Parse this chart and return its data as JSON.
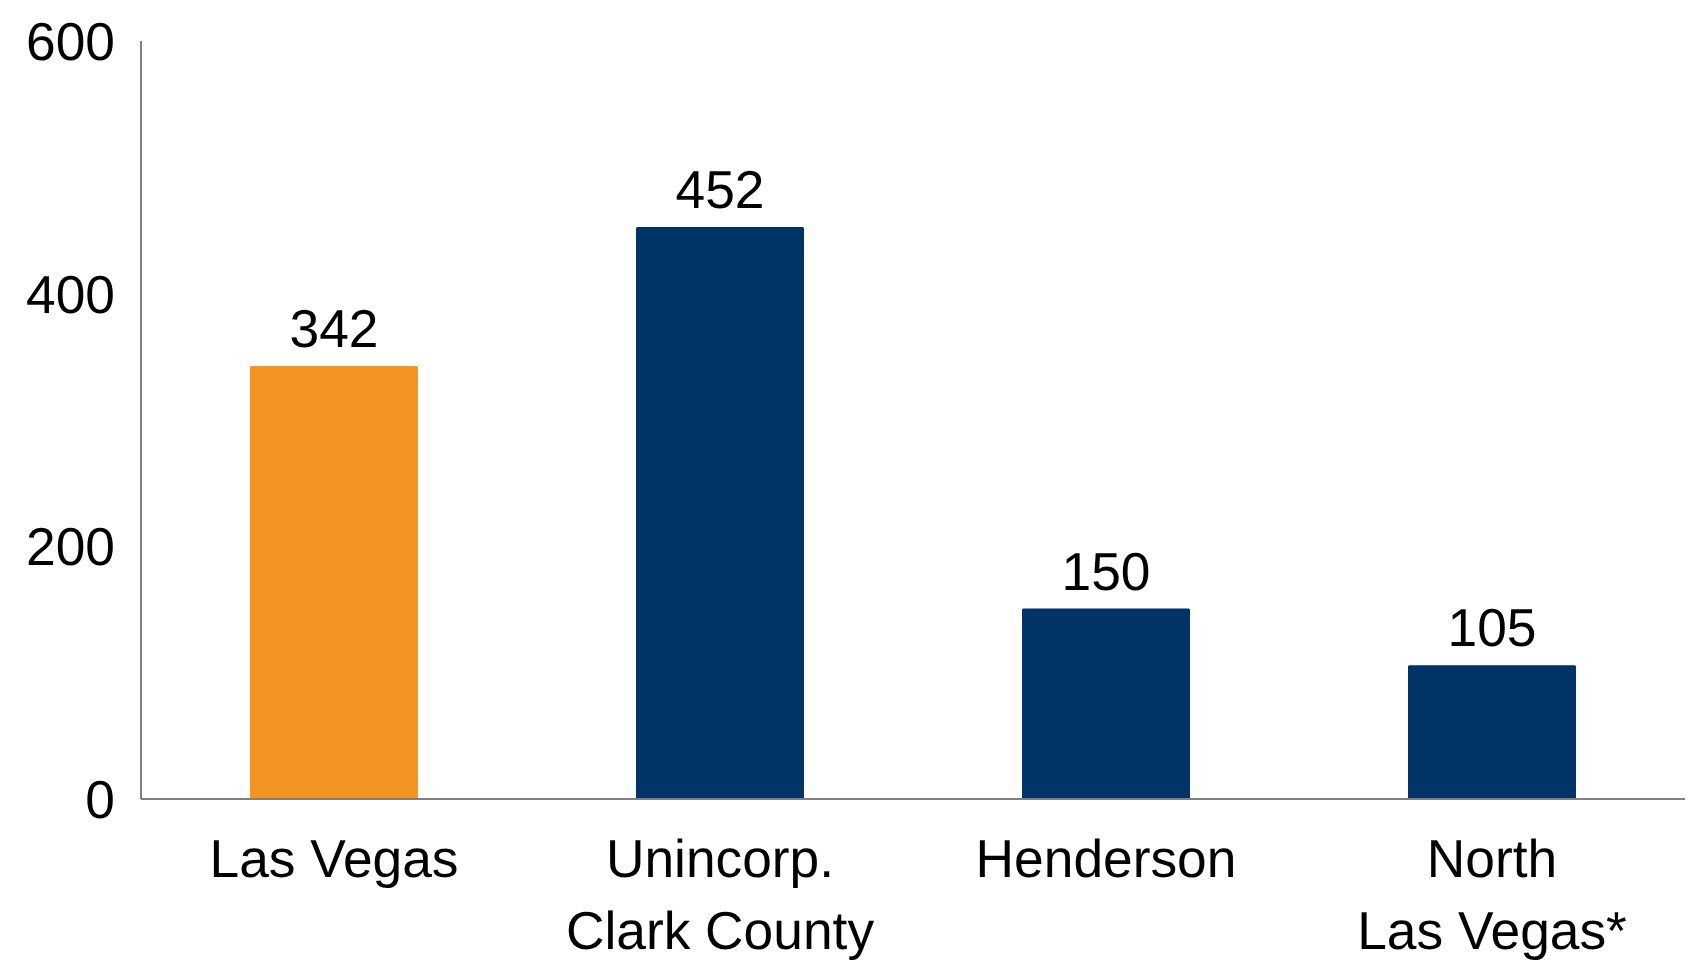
{
  "chart_data": {
    "type": "bar",
    "categories": [
      "Las Vegas",
      "Unincorp.\nClark County",
      "Henderson",
      "North\nLas Vegas*"
    ],
    "values": [
      342,
      452,
      150,
      105
    ],
    "colors": [
      "#f39423",
      "#003366",
      "#003366",
      "#003366"
    ],
    "ylim": [
      0,
      600
    ],
    "yticks": [
      0,
      200,
      400,
      600
    ],
    "data_labels": true,
    "grid": false
  }
}
